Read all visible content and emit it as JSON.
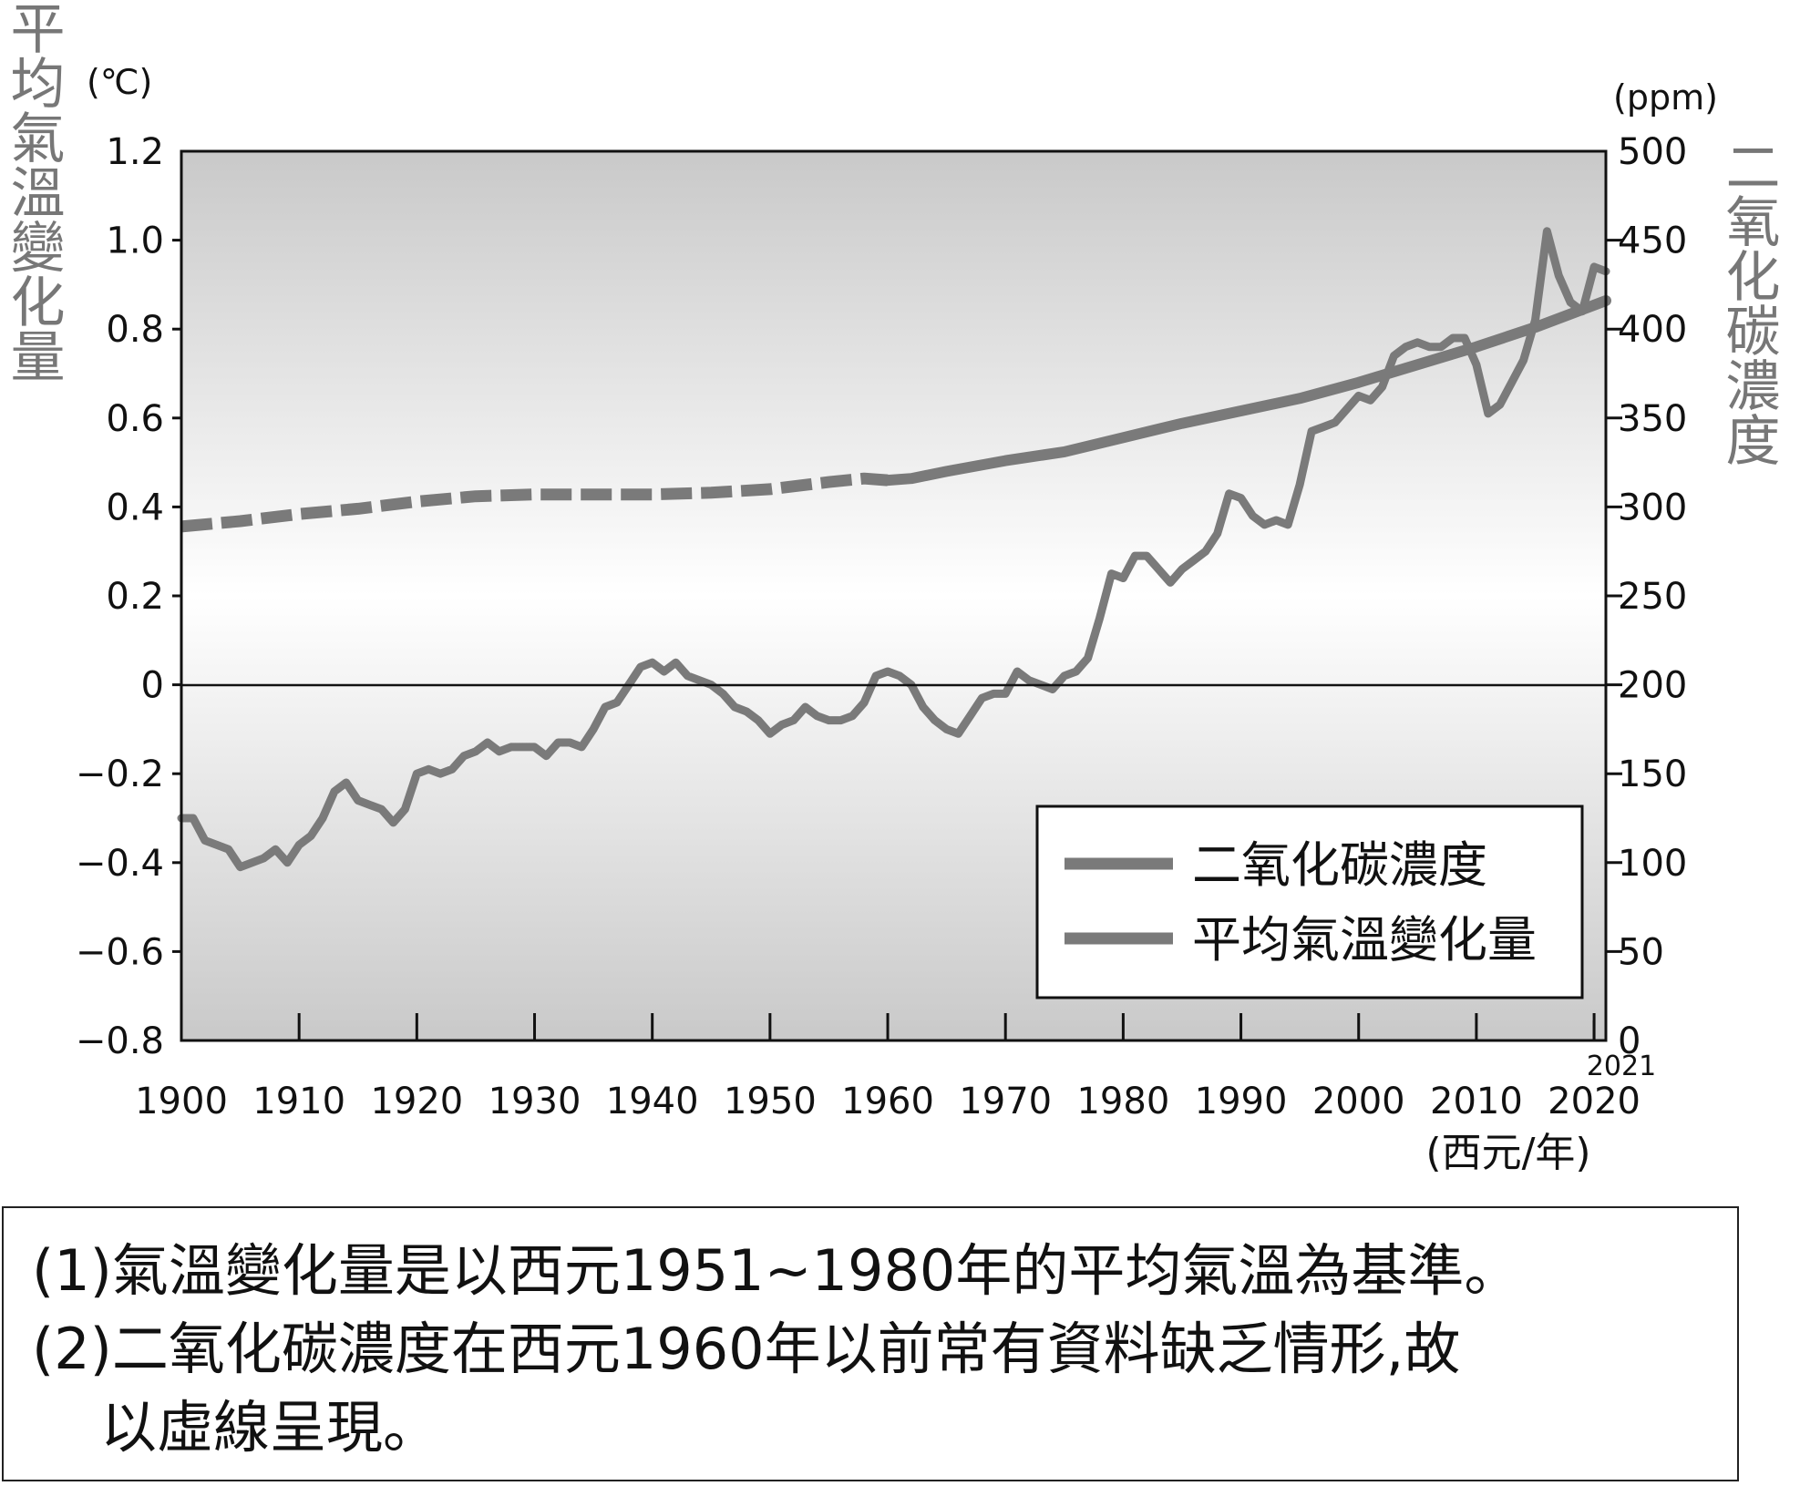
{
  "chart_data": {
    "type": "line",
    "left_axis": {
      "unit": "(℃)",
      "label": "平均氣溫變化量",
      "ticks": [
        "1.2",
        "1.0",
        "0.8",
        "0.6",
        "0.4",
        "0.2",
        "0",
        "−0.2",
        "−0.4",
        "−0.6",
        "−0.8"
      ],
      "tick_values": [
        1.2,
        1.0,
        0.8,
        0.6,
        0.4,
        0.2,
        0,
        -0.2,
        -0.4,
        -0.6,
        -0.8
      ],
      "range": [
        -0.8,
        1.2
      ]
    },
    "right_axis": {
      "unit": "(ppm)",
      "label": "二氧化碳濃度",
      "ticks": [
        "500",
        "450",
        "400",
        "350",
        "300",
        "250",
        "200",
        "150",
        "100",
        "50",
        "0"
      ],
      "tick_values": [
        500,
        450,
        400,
        350,
        300,
        250,
        200,
        150,
        100,
        50,
        0
      ],
      "range": [
        0,
        500
      ]
    },
    "x_axis": {
      "unit": "(西元/年)",
      "ticks": [
        "1900",
        "1910",
        "1920",
        "1930",
        "1940",
        "1950",
        "1960",
        "1970",
        "1980",
        "1990",
        "2000",
        "2010",
        "2020"
      ],
      "tick_values": [
        1900,
        1910,
        1920,
        1930,
        1940,
        1950,
        1960,
        1970,
        1980,
        1990,
        2000,
        2010,
        2020
      ],
      "end_label": "2021",
      "range": [
        1900,
        2021
      ]
    },
    "grid": false,
    "legend_position": "bottom-right",
    "legend": [
      "二氧化碳濃度",
      "平均氣溫變化量"
    ],
    "colors": {
      "series": "#7a7a7a",
      "axis": "#111111"
    },
    "series": [
      {
        "name": "二氧化碳濃度",
        "axis": "right",
        "dashed_before": 1960,
        "x": [
          1900,
          1905,
          1910,
          1915,
          1920,
          1925,
          1930,
          1935,
          1940,
          1945,
          1950,
          1955,
          1958,
          1960,
          1962,
          1965,
          1970,
          1975,
          1980,
          1985,
          1990,
          1995,
          2000,
          2005,
          2010,
          2015,
          2021
        ],
        "y": [
          289,
          292,
          296,
          299,
          303,
          306,
          307,
          307,
          307,
          308,
          310,
          314,
          316,
          315,
          316,
          320,
          326,
          331,
          339,
          347,
          354,
          361,
          370,
          380,
          390,
          401,
          416
        ]
      },
      {
        "name": "平均氣溫變化量",
        "axis": "left",
        "x": [
          1900,
          1901,
          1902,
          1903,
          1904,
          1905,
          1906,
          1907,
          1908,
          1909,
          1910,
          1911,
          1912,
          1913,
          1914,
          1915,
          1916,
          1917,
          1918,
          1919,
          1920,
          1921,
          1922,
          1923,
          1924,
          1925,
          1926,
          1927,
          1928,
          1929,
          1930,
          1931,
          1932,
          1933,
          1934,
          1935,
          1936,
          1937,
          1938,
          1939,
          1940,
          1941,
          1942,
          1943,
          1944,
          1945,
          1946,
          1947,
          1948,
          1949,
          1950,
          1951,
          1952,
          1953,
          1954,
          1955,
          1956,
          1957,
          1958,
          1959,
          1960,
          1961,
          1962,
          1963,
          1964,
          1965,
          1966,
          1967,
          1968,
          1969,
          1970,
          1971,
          1972,
          1973,
          1974,
          1975,
          1976,
          1977,
          1978,
          1979,
          1980,
          1981,
          1982,
          1983,
          1984,
          1985,
          1986,
          1987,
          1988,
          1989,
          1990,
          1991,
          1992,
          1993,
          1994,
          1995,
          1996,
          1997,
          1998,
          1999,
          2000,
          2001,
          2002,
          2003,
          2004,
          2005,
          2006,
          2007,
          2008,
          2009,
          2010,
          2011,
          2012,
          2013,
          2014,
          2015,
          2016,
          2017,
          2018,
          2019,
          2020,
          2021
        ],
        "y": [
          -0.3,
          -0.3,
          -0.35,
          -0.36,
          -0.37,
          -0.41,
          -0.4,
          -0.39,
          -0.37,
          -0.4,
          -0.36,
          -0.34,
          -0.3,
          -0.24,
          -0.22,
          -0.26,
          -0.27,
          -0.28,
          -0.31,
          -0.28,
          -0.2,
          -0.19,
          -0.2,
          -0.19,
          -0.16,
          -0.15,
          -0.13,
          -0.15,
          -0.14,
          -0.14,
          -0.14,
          -0.16,
          -0.13,
          -0.13,
          -0.14,
          -0.1,
          -0.05,
          -0.04,
          0.0,
          0.04,
          0.05,
          0.03,
          0.05,
          0.02,
          0.01,
          0.0,
          -0.02,
          -0.05,
          -0.06,
          -0.08,
          -0.11,
          -0.09,
          -0.08,
          -0.05,
          -0.07,
          -0.08,
          -0.08,
          -0.07,
          -0.04,
          0.02,
          0.03,
          0.02,
          0.0,
          -0.05,
          -0.08,
          -0.1,
          -0.11,
          -0.07,
          -0.03,
          -0.02,
          -0.02,
          0.03,
          0.01,
          0.0,
          -0.01,
          0.02,
          0.03,
          0.06,
          0.15,
          0.25,
          0.24,
          0.29,
          0.29,
          0.26,
          0.23,
          0.26,
          0.28,
          0.3,
          0.34,
          0.43,
          0.42,
          0.38,
          0.36,
          0.37,
          0.36,
          0.45,
          0.57,
          0.58,
          0.59,
          0.62,
          0.65,
          0.64,
          0.67,
          0.74,
          0.76,
          0.77,
          0.76,
          0.76,
          0.78,
          0.78,
          0.72,
          0.61,
          0.63,
          0.68,
          0.73,
          0.82,
          1.02,
          0.92,
          0.86,
          0.84,
          0.94,
          0.93
        ]
      }
    ]
  },
  "notes": [
    "(1)氣溫變化量是以西元1951~1980年的平均氣溫為基準。",
    "(2)二氧化碳濃度在西元1960年以前常有資料缺乏情形,故",
    "以虛線呈現。"
  ]
}
